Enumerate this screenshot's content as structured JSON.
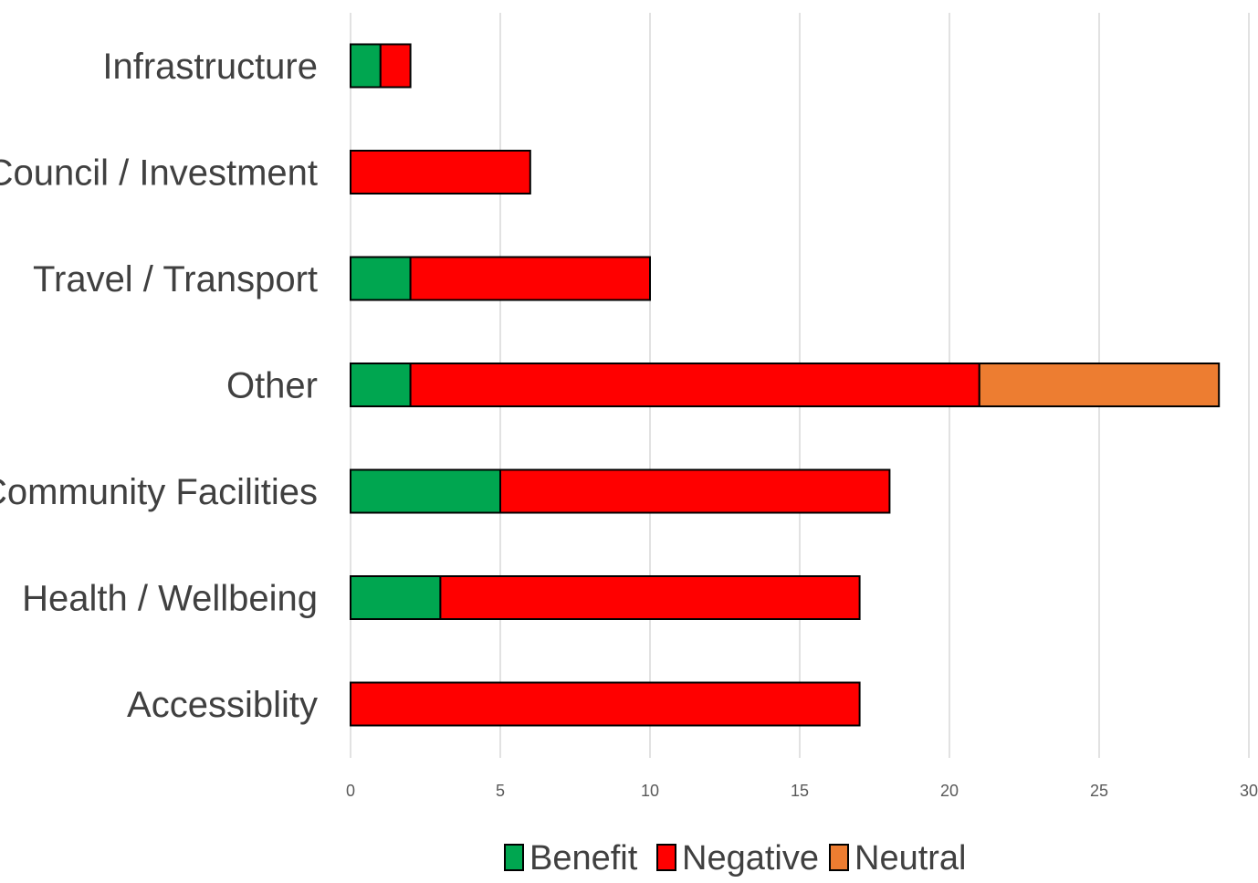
{
  "chart_data": {
    "type": "bar",
    "orientation": "horizontal",
    "stacked": true,
    "title": "",
    "xlabel": "",
    "ylabel": "",
    "categories": [
      "Infrastructure",
      "Council / Investment",
      "Travel / Transport",
      "Other",
      "Community Facilities",
      "Health / Wellbeing",
      "Accessiblity"
    ],
    "series": [
      {
        "name": "Benefit",
        "color": "#00a650",
        "values": [
          1,
          0,
          2,
          2,
          5,
          3,
          0
        ]
      },
      {
        "name": "Negative",
        "color": "#ff0000",
        "values": [
          1,
          6,
          8,
          19,
          13,
          14,
          17
        ]
      },
      {
        "name": "Neutral",
        "color": "#ed7d31",
        "values": [
          0,
          0,
          0,
          8,
          0,
          0,
          0
        ]
      }
    ],
    "xlim": [
      0,
      30
    ],
    "x_ticks": [
      "0",
      "5",
      "10",
      "15",
      "20",
      "25",
      "30"
    ],
    "grid": "vertical",
    "legend_position": "bottom"
  }
}
